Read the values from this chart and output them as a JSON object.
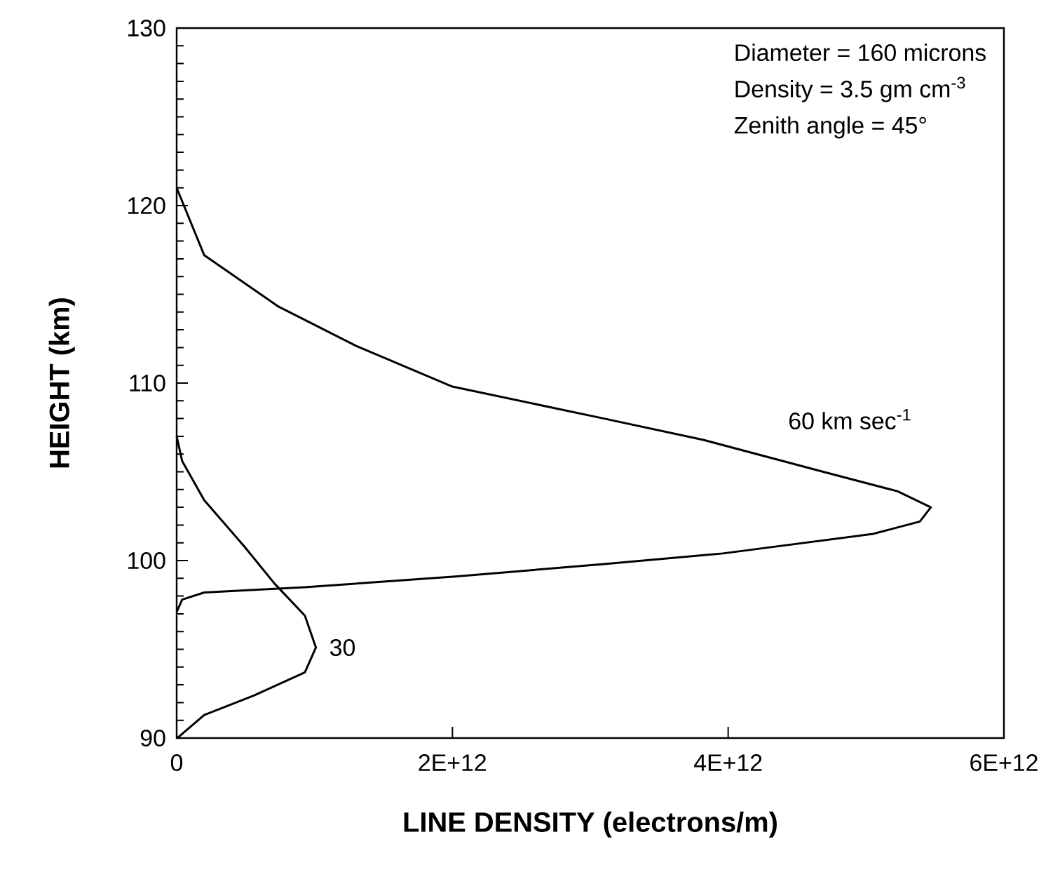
{
  "chart_data": {
    "type": "line",
    "xlabel": "LINE DENSITY   (electrons/m)",
    "ylabel": "HEIGHT  (km)",
    "annotations": [
      "Diameter = 160 microns",
      "Density = 3.5 gm cm$^{-3}$",
      "Zenith angle = 45°"
    ],
    "xlim": [
      0,
      6000000000000.0
    ],
    "ylim": [
      90,
      130
    ],
    "xticks": [
      0,
      {
        "value": 2000000000000.0,
        "label": "2E+12"
      },
      {
        "value": 4000000000000.0,
        "label": "4E+12"
      },
      {
        "value": 6000000000000.0,
        "label": "6E+12"
      }
    ],
    "yticks": [
      90,
      100,
      110,
      120,
      130
    ],
    "series": [
      {
        "name": "60 km sec$^{-1}$",
        "color": "#000000",
        "x": [
          0,
          200000000000.0,
          740000000000.0,
          1300000000000.0,
          2000000000000.0,
          3100000000000.0,
          3820000000000.0,
          4690000000000.0,
          5230000000000.0,
          5470000000000.0,
          5390000000000.0,
          5050000000000.0,
          3960000000000.0,
          3100000000000.0,
          2020000000000.0,
          930000000000.0,
          200000000000.0,
          40000000000.0,
          0
        ],
        "values": [
          121,
          117.2,
          114.3,
          112.1,
          109.8,
          108.0,
          106.8,
          105.0,
          103.9,
          103.0,
          102.2,
          101.5,
          100.4,
          99.8,
          99.1,
          98.5,
          98.2,
          97.8,
          97.1
        ]
      },
      {
        "name": "30",
        "color": "#000000",
        "x": [
          0,
          40000000000.0,
          200000000000.0,
          490000000000.0,
          710000000000.0,
          930000000000.0,
          1010000000000.0,
          930000000000.0,
          560000000000.0,
          200000000000.0,
          20000000000.0,
          0
        ],
        "values": [
          107.0,
          105.6,
          103.4,
          100.8,
          98.7,
          96.9,
          95.1,
          93.7,
          92.4,
          91.3,
          90.1,
          90
        ]
      }
    ]
  }
}
